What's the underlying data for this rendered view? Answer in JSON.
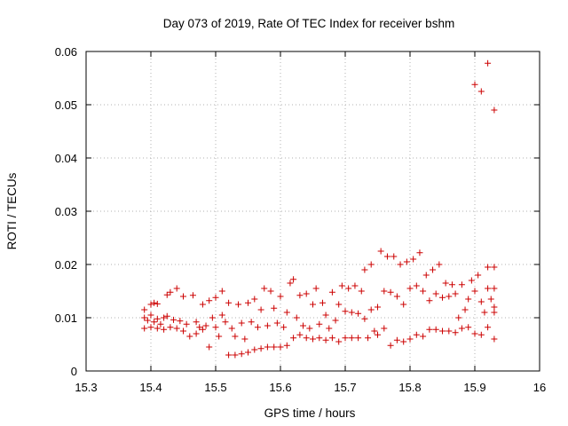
{
  "chart_data": {
    "type": "scatter",
    "title": "Day 073 of 2019, Rate Of TEC Index for receiver bshm",
    "xlabel": "GPS time / hours",
    "ylabel": "ROTI / TECUs",
    "xlim": [
      15.3,
      16
    ],
    "ylim": [
      0,
      0.06
    ],
    "xticks": [
      "15.3",
      "15.4",
      "15.5",
      "15.6",
      "15.7",
      "15.8",
      "15.9",
      "16"
    ],
    "yticks": [
      "0",
      "0.01",
      "0.02",
      "0.03",
      "0.04",
      "0.05",
      "0.06"
    ],
    "grid": true,
    "marker": "plus",
    "color": "#cc0000",
    "points": [
      [
        15.39,
        0.0115
      ],
      [
        15.39,
        0.01
      ],
      [
        15.39,
        0.008
      ],
      [
        15.395,
        0.0095
      ],
      [
        15.4,
        0.0125
      ],
      [
        15.4,
        0.0105
      ],
      [
        15.4,
        0.0082
      ],
      [
        15.405,
        0.0128
      ],
      [
        15.405,
        0.0092
      ],
      [
        15.41,
        0.0126
      ],
      [
        15.41,
        0.0098
      ],
      [
        15.41,
        0.008
      ],
      [
        15.415,
        0.0088
      ],
      [
        15.42,
        0.01
      ],
      [
        15.42,
        0.0078
      ],
      [
        15.425,
        0.0143
      ],
      [
        15.425,
        0.0103
      ],
      [
        15.43,
        0.0148
      ],
      [
        15.43,
        0.0082
      ],
      [
        15.435,
        0.0096
      ],
      [
        15.44,
        0.0155
      ],
      [
        15.44,
        0.008
      ],
      [
        15.445,
        0.0094
      ],
      [
        15.45,
        0.014
      ],
      [
        15.45,
        0.0075
      ],
      [
        15.455,
        0.0088
      ],
      [
        15.46,
        0.0065
      ],
      [
        15.465,
        0.0142
      ],
      [
        15.47,
        0.007
      ],
      [
        15.47,
        0.0092
      ],
      [
        15.475,
        0.0082
      ],
      [
        15.48,
        0.0125
      ],
      [
        15.48,
        0.0078
      ],
      [
        15.485,
        0.0085
      ],
      [
        15.49,
        0.0132
      ],
      [
        15.49,
        0.0045
      ],
      [
        15.495,
        0.01
      ],
      [
        15.5,
        0.0138
      ],
      [
        15.5,
        0.0082
      ],
      [
        15.505,
        0.0065
      ],
      [
        15.51,
        0.015
      ],
      [
        15.51,
        0.0105
      ],
      [
        15.515,
        0.0092
      ],
      [
        15.52,
        0.003
      ],
      [
        15.52,
        0.0128
      ],
      [
        15.525,
        0.008
      ],
      [
        15.53,
        0.003
      ],
      [
        15.53,
        0.0065
      ],
      [
        15.535,
        0.0125
      ],
      [
        15.54,
        0.0032
      ],
      [
        15.54,
        0.009
      ],
      [
        15.545,
        0.006
      ],
      [
        15.55,
        0.0128
      ],
      [
        15.55,
        0.0035
      ],
      [
        15.555,
        0.0092
      ],
      [
        15.56,
        0.0135
      ],
      [
        15.56,
        0.004
      ],
      [
        15.565,
        0.0082
      ],
      [
        15.57,
        0.0115
      ],
      [
        15.57,
        0.0042
      ],
      [
        15.575,
        0.0155
      ],
      [
        15.58,
        0.0085
      ],
      [
        15.58,
        0.0045
      ],
      [
        15.585,
        0.015
      ],
      [
        15.59,
        0.0118
      ],
      [
        15.59,
        0.0045
      ],
      [
        15.595,
        0.009
      ],
      [
        15.6,
        0.014
      ],
      [
        15.6,
        0.0045
      ],
      [
        15.605,
        0.0082
      ],
      [
        15.61,
        0.011
      ],
      [
        15.61,
        0.0048
      ],
      [
        15.615,
        0.0165
      ],
      [
        15.62,
        0.0172
      ],
      [
        15.62,
        0.0062
      ],
      [
        15.625,
        0.01
      ],
      [
        15.63,
        0.0142
      ],
      [
        15.63,
        0.0068
      ],
      [
        15.635,
        0.0085
      ],
      [
        15.64,
        0.0145
      ],
      [
        15.64,
        0.0062
      ],
      [
        15.645,
        0.008
      ],
      [
        15.65,
        0.0125
      ],
      [
        15.65,
        0.006
      ],
      [
        15.655,
        0.0155
      ],
      [
        15.66,
        0.0088
      ],
      [
        15.66,
        0.0062
      ],
      [
        15.665,
        0.0128
      ],
      [
        15.67,
        0.0105
      ],
      [
        15.67,
        0.0058
      ],
      [
        15.675,
        0.008
      ],
      [
        15.68,
        0.0148
      ],
      [
        15.68,
        0.0062
      ],
      [
        15.685,
        0.0095
      ],
      [
        15.69,
        0.0125
      ],
      [
        15.69,
        0.0055
      ],
      [
        15.695,
        0.016
      ],
      [
        15.7,
        0.0112
      ],
      [
        15.7,
        0.0062
      ],
      [
        15.705,
        0.0155
      ],
      [
        15.71,
        0.011
      ],
      [
        15.71,
        0.0062
      ],
      [
        15.715,
        0.016
      ],
      [
        15.72,
        0.0108
      ],
      [
        15.72,
        0.0062
      ],
      [
        15.725,
        0.015
      ],
      [
        15.73,
        0.019
      ],
      [
        15.73,
        0.0098
      ],
      [
        15.735,
        0.0062
      ],
      [
        15.74,
        0.02
      ],
      [
        15.74,
        0.0115
      ],
      [
        15.745,
        0.0075
      ],
      [
        15.75,
        0.012
      ],
      [
        15.75,
        0.0068
      ],
      [
        15.755,
        0.0225
      ],
      [
        15.76,
        0.015
      ],
      [
        15.76,
        0.008
      ],
      [
        15.765,
        0.0215
      ],
      [
        15.77,
        0.0148
      ],
      [
        15.77,
        0.0048
      ],
      [
        15.775,
        0.0215
      ],
      [
        15.78,
        0.014
      ],
      [
        15.78,
        0.0058
      ],
      [
        15.785,
        0.02
      ],
      [
        15.79,
        0.0125
      ],
      [
        15.79,
        0.0055
      ],
      [
        15.795,
        0.0205
      ],
      [
        15.8,
        0.0155
      ],
      [
        15.8,
        0.006
      ],
      [
        15.805,
        0.021
      ],
      [
        15.81,
        0.016
      ],
      [
        15.81,
        0.0068
      ],
      [
        15.815,
        0.0222
      ],
      [
        15.82,
        0.015
      ],
      [
        15.82,
        0.0065
      ],
      [
        15.825,
        0.018
      ],
      [
        15.83,
        0.0132
      ],
      [
        15.83,
        0.0078
      ],
      [
        15.835,
        0.019
      ],
      [
        15.84,
        0.0145
      ],
      [
        15.84,
        0.0078
      ],
      [
        15.845,
        0.02
      ],
      [
        15.85,
        0.0138
      ],
      [
        15.85,
        0.0075
      ],
      [
        15.855,
        0.0165
      ],
      [
        15.86,
        0.014
      ],
      [
        15.86,
        0.0075
      ],
      [
        15.865,
        0.0162
      ],
      [
        15.87,
        0.0145
      ],
      [
        15.87,
        0.0072
      ],
      [
        15.875,
        0.01
      ],
      [
        15.88,
        0.0162
      ],
      [
        15.88,
        0.008
      ],
      [
        15.885,
        0.0115
      ],
      [
        15.89,
        0.0135
      ],
      [
        15.89,
        0.0082
      ],
      [
        15.895,
        0.017
      ],
      [
        15.9,
        0.0538
      ],
      [
        15.9,
        0.015
      ],
      [
        15.9,
        0.007
      ],
      [
        15.905,
        0.018
      ],
      [
        15.91,
        0.0525
      ],
      [
        15.91,
        0.013
      ],
      [
        15.91,
        0.0068
      ],
      [
        15.915,
        0.011
      ],
      [
        15.92,
        0.0578
      ],
      [
        15.92,
        0.0195
      ],
      [
        15.92,
        0.0155
      ],
      [
        15.92,
        0.0082
      ],
      [
        15.925,
        0.0135
      ],
      [
        15.93,
        0.049
      ],
      [
        15.93,
        0.0195
      ],
      [
        15.93,
        0.0155
      ],
      [
        15.93,
        0.012
      ],
      [
        15.93,
        0.011
      ],
      [
        15.93,
        0.006
      ]
    ]
  }
}
